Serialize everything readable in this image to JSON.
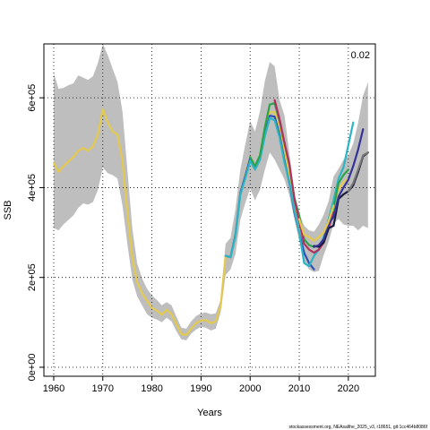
{
  "chart_data": {
    "type": "line",
    "title": "",
    "xlabel": "Years",
    "ylabel": "SSB",
    "xlim": [
      1958,
      2025.5
    ],
    "ylim": [
      -20000,
      720000
    ],
    "x_ticks": [
      1960,
      1970,
      1980,
      1990,
      2000,
      2010,
      2020
    ],
    "y_ticks": [
      0,
      200000,
      400000,
      600000
    ],
    "y_tick_labels": [
      "0e+00",
      "2e+05",
      "4e+05",
      "6e+05"
    ],
    "grid": true,
    "corner_label": "0.02",
    "source_note": "stockassessment.org, NEAsalthe_2025_v3, r18651, git:1cc464b8086f",
    "confidence_band": {
      "color": "#bebebe",
      "years": [
        1960,
        1961,
        1962,
        1963,
        1964,
        1965,
        1966,
        1967,
        1968,
        1969,
        1970,
        1971,
        1972,
        1973,
        1974,
        1975,
        1976,
        1977,
        1978,
        1979,
        1980,
        1981,
        1982,
        1983,
        1984,
        1985,
        1986,
        1987,
        1988,
        1989,
        1990,
        1991,
        1992,
        1993,
        1994,
        1995,
        1996,
        1997,
        1998,
        1999,
        2000,
        2001,
        2002,
        2003,
        2004,
        2005,
        2006,
        2007,
        2008,
        2009,
        2010,
        2011,
        2012,
        2013,
        2014,
        2015,
        2016,
        2017,
        2018,
        2019,
        2020,
        2021,
        2022,
        2023,
        2024
      ],
      "lower": [
        310000,
        305000,
        318000,
        328000,
        338000,
        355000,
        365000,
        362000,
        368000,
        395000,
        445000,
        432000,
        428000,
        420000,
        360000,
        275000,
        195000,
        158000,
        138000,
        118000,
        110000,
        106000,
        100000,
        110000,
        102000,
        80000,
        62000,
        60000,
        75000,
        84000,
        90000,
        88000,
        82000,
        86000,
        122000,
        205000,
        218000,
        252000,
        328000,
        365000,
        398000,
        372000,
        395000,
        440000,
        478000,
        462000,
        440000,
        418000,
        382000,
        330000,
        282000,
        238000,
        218000,
        212000,
        215000,
        250000,
        280000,
        320000,
        330000,
        318000,
        315000,
        315000,
        305000,
        315000,
        310000
      ],
      "upper": [
        655000,
        620000,
        622000,
        628000,
        632000,
        650000,
        645000,
        640000,
        648000,
        678000,
        720000,
        695000,
        665000,
        635000,
        570000,
        440000,
        310000,
        232000,
        198000,
        175000,
        160000,
        150000,
        138000,
        145000,
        138000,
        112000,
        88000,
        86000,
        102000,
        114000,
        120000,
        122000,
        118000,
        120000,
        150000,
        275000,
        288000,
        352000,
        440000,
        495000,
        548000,
        525000,
        570000,
        638000,
        680000,
        670000,
        595000,
        560000,
        475000,
        385000,
        342000,
        315000,
        305000,
        302000,
        318000,
        340000,
        370000,
        425000,
        442000,
        462000,
        472000,
        498000,
        545000,
        605000,
        635000
      ]
    },
    "series": [
      {
        "color": "#e3c94d",
        "years": [
          1960,
          1961,
          1962,
          1963,
          1964,
          1965,
          1966,
          1967,
          1968,
          1969,
          1970,
          1971,
          1972,
          1973,
          1974,
          1975,
          1976,
          1977,
          1978,
          1979,
          1980,
          1981,
          1982,
          1983,
          1984,
          1985,
          1986,
          1987,
          1988,
          1989,
          1990,
          1991,
          1992,
          1993,
          1994,
          1995,
          1996,
          1997,
          1998,
          1999,
          2000,
          2001,
          2002,
          2003,
          2004,
          2005,
          2006,
          2007,
          2008,
          2009,
          2010,
          2011,
          2012,
          2013,
          2014,
          2015,
          2016,
          2017,
          2018,
          2019,
          2020
        ],
        "values": [
          455000,
          435000,
          448000,
          458000,
          468000,
          482000,
          488000,
          482000,
          492000,
          518000,
          575000,
          545000,
          525000,
          518000,
          460000,
          345000,
          245000,
          190000,
          165000,
          148000,
          132000,
          126000,
          117000,
          128000,
          118000,
          96000,
          74000,
          72000,
          86000,
          98000,
          104000,
          105000,
          98000,
          102000,
          136000,
          248000,
          245000,
          295000,
          388000,
          428000,
          468000,
          448000,
          472000,
          528000,
          568000,
          568000,
          530000,
          480000,
          430000,
          360000,
          330000,
          295000,
          290000,
          282000,
          290000,
          300000,
          325000,
          365000,
          395000,
          412000,
          420000
        ]
      },
      {
        "color": "#2f4fb5",
        "years": [
          1995,
          1996,
          1997,
          1998,
          1999,
          2000,
          2001,
          2002,
          2003,
          2004,
          2005,
          2006,
          2007,
          2008,
          2009,
          2010,
          2011,
          2012,
          2013
        ],
        "values": [
          248000,
          245000,
          295000,
          388000,
          425000,
          465000,
          445000,
          468000,
          520000,
          560000,
          558000,
          518000,
          460000,
          410000,
          345000,
          300000,
          255000,
          232000,
          218000
        ]
      },
      {
        "color": "#2bb5c4",
        "years": [
          1995,
          1996,
          1997,
          1998,
          1999,
          2000,
          2001,
          2002,
          2003,
          2004,
          2005,
          2006,
          2007,
          2008,
          2009,
          2010,
          2011,
          2012,
          2013,
          2014,
          2015,
          2016,
          2017,
          2018,
          2019,
          2020,
          2021
        ],
        "values": [
          248000,
          245000,
          292000,
          385000,
          420000,
          460000,
          440000,
          462000,
          515000,
          555000,
          550000,
          512000,
          455000,
          412000,
          350000,
          300000,
          232000,
          225000,
          248000,
          262000,
          290000,
          330000,
          372000,
          420000,
          445000,
          495000,
          545000
        ]
      },
      {
        "color": "#2da24a",
        "years": [
          2000,
          2001,
          2002,
          2003,
          2004,
          2005,
          2006,
          2007,
          2008,
          2009,
          2010,
          2011,
          2012,
          2013,
          2014,
          2015,
          2016,
          2017,
          2018,
          2019,
          2020
        ],
        "values": [
          468000,
          448000,
          472000,
          535000,
          585000,
          588000,
          548000,
          498000,
          450000,
          378000,
          338000,
          285000,
          272000,
          268000,
          270000,
          285000,
          310000,
          355000,
          410000,
          428000,
          440000
        ]
      },
      {
        "color": "#b03060",
        "years": [
          2005,
          2006,
          2007,
          2008,
          2009,
          2010,
          2011,
          2012,
          2013,
          2014,
          2015,
          2016,
          2017
        ],
        "values": [
          595000,
          552000,
          500000,
          452000,
          375000,
          325000,
          275000,
          262000,
          255000,
          262000,
          278000,
          310000,
          345000
        ]
      },
      {
        "color": "#1a1a3a",
        "years": [
          2013,
          2014,
          2015,
          2016,
          2017,
          2018,
          2019,
          2020,
          2021,
          2022,
          2023,
          2024
        ],
        "values": [
          270000,
          268000,
          278000,
          310000,
          315000,
          375000,
          385000,
          392000,
          405000,
          435000,
          470000,
          478000
        ]
      },
      {
        "color": "#333399",
        "years": [
          2013,
          2014,
          2015,
          2016,
          2017,
          2018,
          2019,
          2020,
          2021,
          2022,
          2023
        ],
        "values": [
          268000,
          272000,
          285000,
          320000,
          335000,
          380000,
          400000,
          418000,
          448000,
          485000,
          530000
        ]
      },
      {
        "color": "#777777",
        "years": [
          2020,
          2021,
          2022,
          2023,
          2024
        ],
        "values": [
          392000,
          410000,
          440000,
          472000,
          478000
        ]
      },
      {
        "color": "#e3c94d",
        "years": [
          2010,
          2011,
          2012,
          2013,
          2014,
          2015,
          2016,
          2017
        ],
        "values": [
          330000,
          295000,
          290000,
          282000,
          290000,
          300000,
          325000,
          360000
        ]
      }
    ]
  }
}
